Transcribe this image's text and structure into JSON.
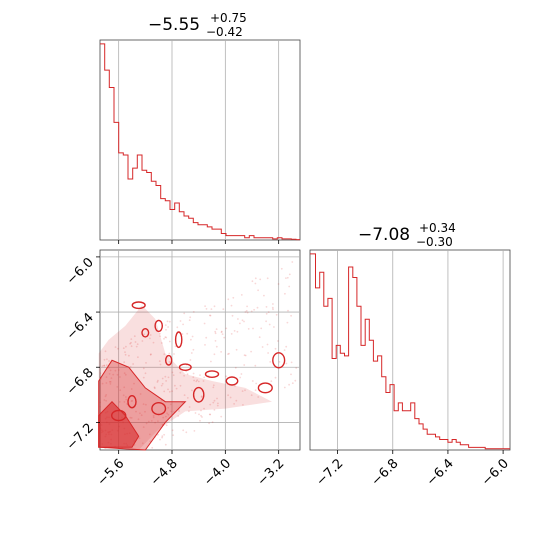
{
  "chart_data": {
    "type": "corner",
    "color": "#d62728",
    "grid": true,
    "param1": {
      "title_value": "−5.55",
      "title_plus": "+0.75",
      "title_minus": "−0.42",
      "range": [
        -5.88,
        -2.88
      ],
      "ticks": [
        -5.6,
        -4.8,
        -4.0,
        -3.2
      ],
      "tick_labels": [
        "−5.6",
        "−4.8",
        "−4.0",
        "−3.2"
      ],
      "histogram_edges": [
        -5.88,
        -5.81,
        -5.74,
        -5.67,
        -5.6,
        -5.53,
        -5.46,
        -5.39,
        -5.32,
        -5.25,
        -5.18,
        -5.11,
        -5.04,
        -4.97,
        -4.9,
        -4.83,
        -4.76,
        -4.69,
        -4.62,
        -4.55,
        -4.48,
        -4.41,
        -4.34,
        -4.27,
        -4.2,
        -4.13,
        -4.06,
        -3.99,
        -3.92,
        -3.85,
        -3.78,
        -3.71,
        -3.64,
        -3.57,
        -3.5,
        -3.43,
        -3.36,
        -3.29,
        -3.22,
        -3.15,
        -3.08,
        -3.01,
        -2.94,
        -2.88
      ],
      "histogram_counts": [
        90,
        78,
        70,
        54,
        40,
        39,
        28,
        33,
        39,
        32,
        31,
        27,
        25,
        19,
        18,
        14,
        17,
        13,
        11,
        10,
        8,
        7,
        7,
        6,
        5,
        5,
        3,
        2,
        2,
        2,
        2,
        1,
        2,
        1,
        1,
        1,
        1,
        0.5,
        1,
        0.5,
        0.5,
        0.3,
        0.2
      ]
    },
    "param2": {
      "title_value": "−7.08",
      "title_plus": "+0.34",
      "title_minus": "−0.30",
      "range": [
        -7.4,
        -5.95
      ],
      "ticks": [
        -7.2,
        -6.8,
        -6.4,
        -6.0
      ],
      "tick_labels": [
        "−7.2",
        "−6.8",
        "−6.4",
        "−6.0"
      ],
      "yaxis_ticks": [
        -6.0,
        -6.4,
        -6.8,
        -7.2
      ],
      "yaxis_tick_labels": [
        "−6.0",
        "−6.4",
        "−6.8",
        "−7.2"
      ],
      "histogram_edges": [
        -7.4,
        -7.36,
        -7.33,
        -7.3,
        -7.27,
        -7.24,
        -7.21,
        -7.18,
        -7.15,
        -7.12,
        -7.09,
        -7.06,
        -7.03,
        -7.0,
        -6.97,
        -6.94,
        -6.91,
        -6.88,
        -6.85,
        -6.82,
        -6.79,
        -6.76,
        -6.73,
        -6.7,
        -6.67,
        -6.64,
        -6.61,
        -6.58,
        -6.55,
        -6.52,
        -6.49,
        -6.46,
        -6.43,
        -6.4,
        -6.37,
        -6.34,
        -6.31,
        -6.28,
        -6.25,
        -6.22,
        -6.19,
        -6.16,
        -6.13,
        -6.1,
        -6.07,
        -6.04,
        -5.95
      ],
      "histogram_counts": [
        75,
        62,
        68,
        55,
        58,
        35,
        40,
        37,
        36,
        70,
        66,
        55,
        40,
        50,
        42,
        34,
        36,
        28,
        22,
        25,
        15,
        18,
        15,
        15,
        18,
        12,
        10,
        8,
        6,
        6,
        5,
        4,
        4,
        3,
        4,
        3,
        2,
        2,
        1,
        1,
        1,
        1,
        0.5,
        0.5,
        0.5,
        0.5
      ]
    },
    "contour_samples": [
      {
        "x": -5.2,
        "y": -6.55
      },
      {
        "x": -5.0,
        "y": -6.5
      },
      {
        "x": -4.85,
        "y": -6.75
      },
      {
        "x": -4.6,
        "y": -6.8
      },
      {
        "x": -4.2,
        "y": -6.85
      },
      {
        "x": -3.9,
        "y": -6.9
      },
      {
        "x": -3.4,
        "y": -6.95
      },
      {
        "x": -3.2,
        "y": -6.75
      },
      {
        "x": -4.4,
        "y": -7.0
      },
      {
        "x": -5.4,
        "y": -7.05
      },
      {
        "x": -5.6,
        "y": -7.15
      },
      {
        "x": -5.0,
        "y": -7.1
      },
      {
        "x": -5.3,
        "y": -6.35
      },
      {
        "x": -4.7,
        "y": -6.6
      }
    ]
  }
}
